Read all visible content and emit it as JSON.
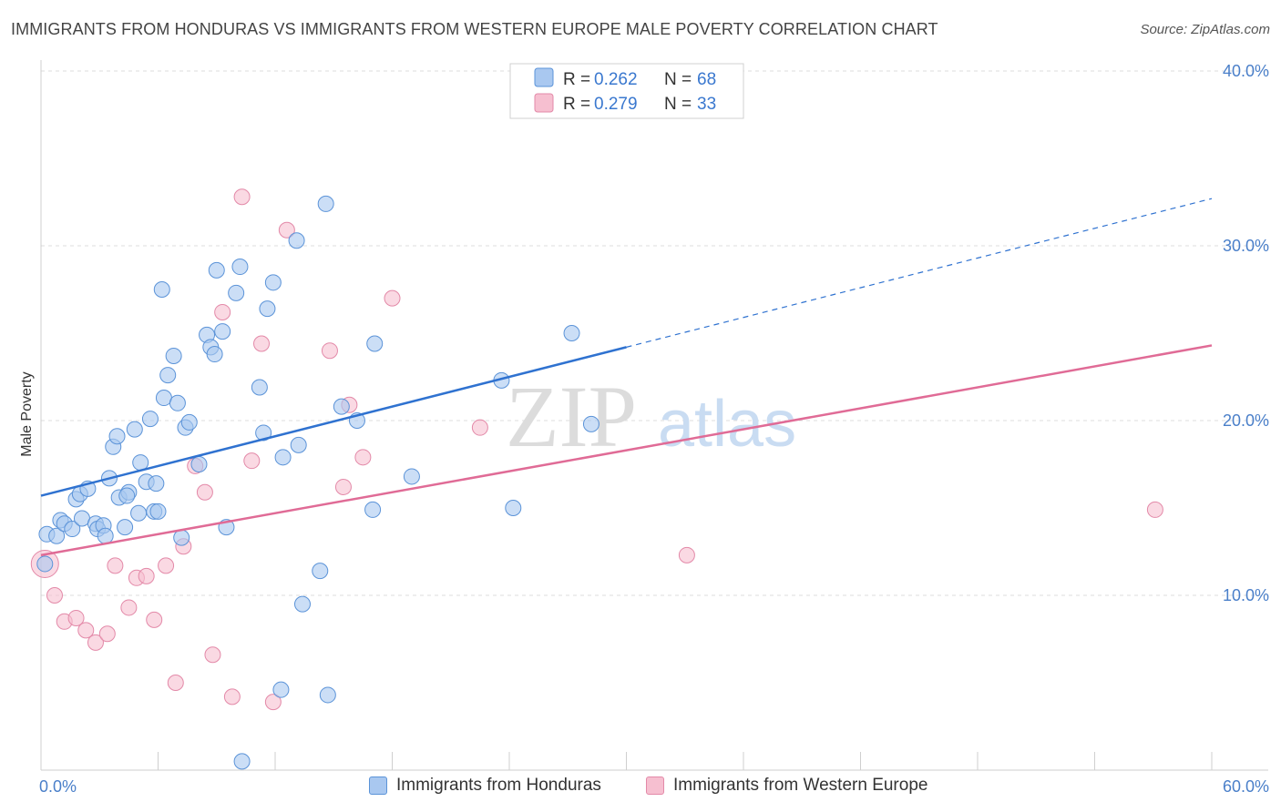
{
  "header": {
    "title": "IMMIGRANTS FROM HONDURAS VS IMMIGRANTS FROM WESTERN EUROPE MALE POVERTY CORRELATION CHART",
    "source": "Source: ZipAtlas.com"
  },
  "watermark": {
    "zip": "ZIP",
    "atlas": "atlas"
  },
  "colors": {
    "blue_fill": "#a9c8f0",
    "blue_stroke": "#5b93d8",
    "blue_line": "#2f72d0",
    "pink_fill": "#f6bfd0",
    "pink_stroke": "#e389a8",
    "pink_line": "#e06b96",
    "grid": "#dcdcdc",
    "tick_text": "#4a7fc9"
  },
  "legend": {
    "rows": [
      {
        "r_label": "R = ",
        "r_value": "0.262",
        "n_label": "N = ",
        "n_value": "68"
      },
      {
        "r_label": "R = ",
        "r_value": "0.279",
        "n_label": "N = ",
        "n_value": "33"
      }
    ]
  },
  "chart_data": {
    "type": "scatter",
    "title": "IMMIGRANTS FROM HONDURAS VS IMMIGRANTS FROM WESTERN EUROPE MALE POVERTY CORRELATION CHART",
    "xlabel": "",
    "ylabel": "Male Poverty",
    "xlim": [
      0,
      60
    ],
    "ylim": [
      0,
      40
    ],
    "x_tick_labels": [
      {
        "value": 0,
        "label": "0.0%"
      },
      {
        "value": 60,
        "label": "60.0%"
      }
    ],
    "y_tick_labels": [
      {
        "value": 10,
        "label": "10.0%"
      },
      {
        "value": 20,
        "label": "20.0%"
      },
      {
        "value": 30,
        "label": "30.0%"
      },
      {
        "value": 40,
        "label": "40.0%"
      }
    ],
    "grid": true,
    "legend_position": "top-center",
    "series": [
      {
        "name": "Immigrants from Honduras",
        "color": "blue",
        "R": 0.262,
        "N": 68,
        "trend": {
          "x0": 0,
          "y0": 15.7,
          "x1": 30,
          "y1": 24.2,
          "dashed_to_x": 60,
          "dashed_to_y": 32.7
        },
        "points": [
          [
            0.3,
            13.5
          ],
          [
            0.8,
            13.4
          ],
          [
            1.0,
            14.3
          ],
          [
            1.2,
            14.1
          ],
          [
            1.6,
            13.8
          ],
          [
            1.8,
            15.5
          ],
          [
            2.0,
            15.8
          ],
          [
            2.1,
            14.4
          ],
          [
            2.4,
            16.1
          ],
          [
            2.8,
            14.1
          ],
          [
            2.9,
            13.8
          ],
          [
            3.2,
            14.0
          ],
          [
            3.3,
            13.4
          ],
          [
            3.5,
            16.7
          ],
          [
            3.7,
            18.5
          ],
          [
            3.9,
            19.1
          ],
          [
            4.0,
            15.6
          ],
          [
            4.3,
            13.9
          ],
          [
            4.5,
            15.9
          ],
          [
            4.8,
            19.5
          ],
          [
            5.0,
            14.7
          ],
          [
            5.1,
            17.6
          ],
          [
            5.4,
            16.5
          ],
          [
            5.6,
            20.1
          ],
          [
            5.8,
            14.8
          ],
          [
            5.9,
            16.4
          ],
          [
            6.2,
            27.5
          ],
          [
            6.3,
            21.3
          ],
          [
            6.5,
            22.6
          ],
          [
            6.8,
            23.7
          ],
          [
            7.0,
            21.0
          ],
          [
            7.2,
            13.3
          ],
          [
            7.4,
            19.6
          ],
          [
            7.6,
            19.9
          ],
          [
            8.1,
            17.5
          ],
          [
            8.5,
            24.9
          ],
          [
            8.7,
            24.2
          ],
          [
            8.9,
            23.8
          ],
          [
            9.0,
            28.6
          ],
          [
            9.3,
            25.1
          ],
          [
            9.5,
            13.9
          ],
          [
            10.0,
            27.3
          ],
          [
            10.2,
            28.8
          ],
          [
            10.3,
            0.5
          ],
          [
            11.2,
            21.9
          ],
          [
            11.4,
            19.3
          ],
          [
            11.6,
            26.4
          ],
          [
            11.9,
            27.9
          ],
          [
            12.3,
            4.6
          ],
          [
            12.4,
            17.9
          ],
          [
            13.1,
            30.3
          ],
          [
            13.2,
            18.6
          ],
          [
            13.4,
            9.5
          ],
          [
            14.3,
            11.4
          ],
          [
            14.6,
            32.4
          ],
          [
            14.7,
            4.3
          ],
          [
            15.4,
            20.8
          ],
          [
            16.2,
            20.0
          ],
          [
            17.0,
            14.9
          ],
          [
            17.1,
            24.4
          ],
          [
            19.0,
            16.8
          ],
          [
            23.6,
            22.3
          ],
          [
            24.2,
            15.0
          ],
          [
            27.2,
            25.0
          ],
          [
            28.2,
            19.8
          ],
          [
            0.2,
            11.8
          ],
          [
            6.0,
            14.8
          ],
          [
            4.4,
            15.7
          ]
        ]
      },
      {
        "name": "Immigrants from Western Europe",
        "color": "pink",
        "R": 0.279,
        "N": 33,
        "trend": {
          "x0": 0,
          "y0": 12.3,
          "x1": 60,
          "y1": 24.3
        },
        "points": [
          [
            0.2,
            11.8
          ],
          [
            0.7,
            10.0
          ],
          [
            1.2,
            8.5
          ],
          [
            1.8,
            8.7
          ],
          [
            2.3,
            8.0
          ],
          [
            2.8,
            7.3
          ],
          [
            3.4,
            7.8
          ],
          [
            3.8,
            11.7
          ],
          [
            4.5,
            9.3
          ],
          [
            4.9,
            11.0
          ],
          [
            5.4,
            11.1
          ],
          [
            5.8,
            8.6
          ],
          [
            6.4,
            11.7
          ],
          [
            6.9,
            5.0
          ],
          [
            7.3,
            12.8
          ],
          [
            7.9,
            17.4
          ],
          [
            8.4,
            15.9
          ],
          [
            8.8,
            6.6
          ],
          [
            9.3,
            26.2
          ],
          [
            9.8,
            4.2
          ],
          [
            10.3,
            32.8
          ],
          [
            10.8,
            17.7
          ],
          [
            11.3,
            24.4
          ],
          [
            11.9,
            3.9
          ],
          [
            12.6,
            30.9
          ],
          [
            14.8,
            24.0
          ],
          [
            15.5,
            16.2
          ],
          [
            15.8,
            20.9
          ],
          [
            16.5,
            17.9
          ],
          [
            18.0,
            27.0
          ],
          [
            22.5,
            19.6
          ],
          [
            33.1,
            12.3
          ],
          [
            57.1,
            14.9
          ]
        ]
      }
    ]
  },
  "bottom_legend": {
    "items": [
      "Immigrants from Honduras",
      "Immigrants from Western Europe"
    ]
  }
}
